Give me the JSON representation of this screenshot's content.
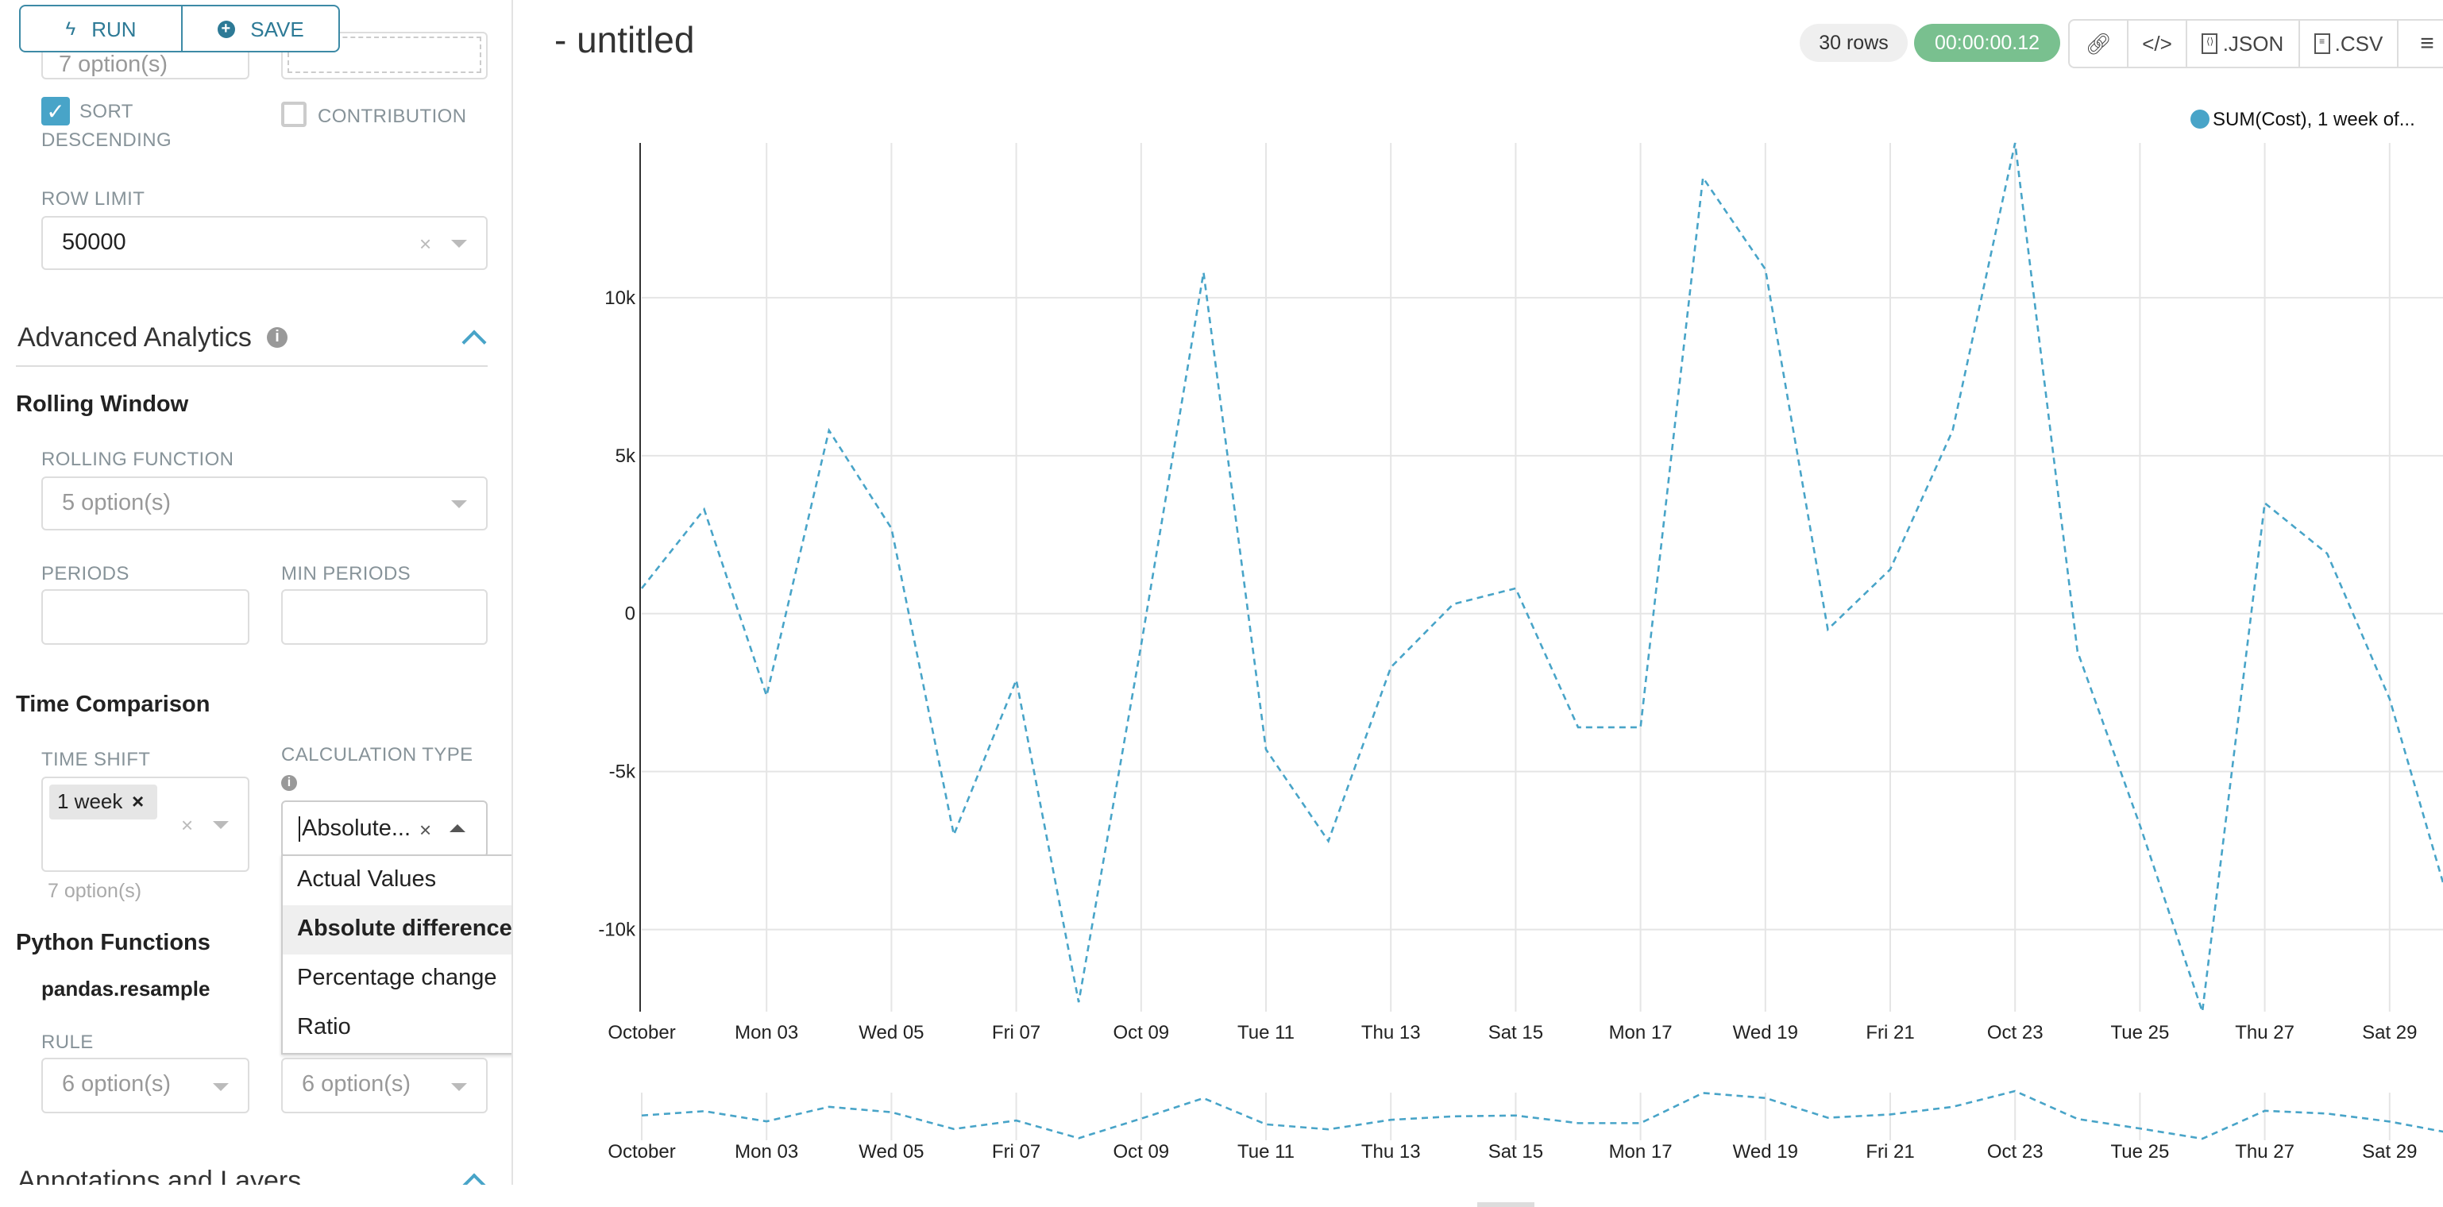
{
  "sidebar": {
    "run_label": "RUN",
    "save_label": "SAVE",
    "top_select_value": "7 option(s)",
    "sort_descending_label_1": "SORT",
    "sort_descending_label_2": "DESCENDING",
    "sort_descending_checked": true,
    "contribution_label": "CONTRIBUTION",
    "contribution_checked": false,
    "row_limit_label": "ROW LIMIT",
    "row_limit_value": "50000",
    "advanced_analytics_title": "Advanced Analytics",
    "rolling_window_title": "Rolling Window",
    "rolling_function_label": "ROLLING FUNCTION",
    "rolling_function_placeholder": "5 option(s)",
    "periods_label": "PERIODS",
    "min_periods_label": "MIN PERIODS",
    "time_comparison_title": "Time Comparison",
    "time_shift_label": "TIME SHIFT",
    "time_shift_tag": "1 week",
    "time_shift_hint": "7 option(s)",
    "calculation_type_label": "CALCULATION TYPE",
    "calculation_type_value": "Absolute...",
    "calculation_options": [
      "Actual Values",
      "Absolute difference",
      "Percentage change",
      "Ratio"
    ],
    "calculation_highlighted": "Absolute difference",
    "python_functions_title": "Python Functions",
    "pandas_resample_label": "pandas.resample",
    "rule_label": "RULE",
    "rule_placeholder": "6 option(s)",
    "method_placeholder": "6 option(s)",
    "annotations_title": "Annotations and Layers"
  },
  "header": {
    "title": "- untitled",
    "rows_badge": "30 rows",
    "timer_badge": "00:00:00.12",
    "json_label": ".JSON",
    "csv_label": ".CSV",
    "icons": [
      "link-icon",
      "code-icon",
      "file-code-icon",
      "file-text-icon",
      "hamburger-menu-icon"
    ]
  },
  "colors": {
    "accent": "#48a4c8",
    "timer": "#79c08f",
    "line": "#48a4c8"
  },
  "chart_data": {
    "type": "line",
    "legend": [
      "SUM(Cost), 1 week of..."
    ],
    "legend_position": "top-right",
    "line_style": "dashed",
    "x": [
      "2016-10-01",
      "2016-10-02",
      "2016-10-03",
      "2016-10-04",
      "2016-10-05",
      "2016-10-06",
      "2016-10-07",
      "2016-10-08",
      "2016-10-09",
      "2016-10-10",
      "2016-10-11",
      "2016-10-12",
      "2016-10-13",
      "2016-10-14",
      "2016-10-15",
      "2016-10-16",
      "2016-10-17",
      "2016-10-18",
      "2016-10-19",
      "2016-10-20",
      "2016-10-21",
      "2016-10-22",
      "2016-10-23",
      "2016-10-24",
      "2016-10-25",
      "2016-10-26",
      "2016-10-27",
      "2016-10-28",
      "2016-10-29",
      "2016-10-30"
    ],
    "series": [
      {
        "name": "SUM(Cost), 1 week of...",
        "values": [
          800,
          3300,
          -2600,
          5800,
          2700,
          -7000,
          -2100,
          -12300,
          -1000,
          10800,
          -4300,
          -7200,
          -1700,
          300,
          800,
          -3600,
          -3600,
          13800,
          10900,
          -500,
          1400,
          5800,
          14900,
          -1200,
          -6700,
          -12600,
          3500,
          1900,
          -2700,
          -9500
        ]
      }
    ],
    "x_tick_labels": [
      "October",
      "Mon 03",
      "Wed 05",
      "Fri 07",
      "Oct 09",
      "Tue 11",
      "Thu 13",
      "Sat 15",
      "Mon 17",
      "Wed 19",
      "Fri 21",
      "Oct 23",
      "Tue 25",
      "Thu 27",
      "Sat 29"
    ],
    "y_tick_labels": [
      "10k",
      "5k",
      "0",
      "-5k",
      "-10k"
    ],
    "y_ticks": [
      10000,
      5000,
      0,
      -5000,
      -10000
    ],
    "ylim": [
      -12600,
      14900
    ],
    "grid": true,
    "brush_preview": true
  }
}
